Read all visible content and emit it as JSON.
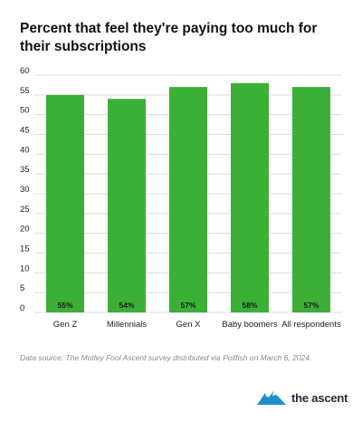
{
  "chart_data": {
    "type": "bar",
    "title": "Percent that feel they're paying too much for their subscriptions",
    "categories": [
      "Gen Z",
      "Millennials",
      "Gen X",
      "Baby boomers",
      "All respondents"
    ],
    "values": [
      55,
      54,
      57,
      58,
      57
    ],
    "value_labels": [
      "55%",
      "54%",
      "57%",
      "58%",
      "57%"
    ],
    "ylim": [
      0,
      60
    ],
    "yticks": [
      0,
      5,
      10,
      15,
      20,
      25,
      30,
      35,
      40,
      45,
      50,
      55,
      60
    ],
    "grid": true,
    "bar_color": "#3caf37",
    "grid_color": "#dcdcdc"
  },
  "source_note": "Data source: The Motley Fool Ascent survey distributed via Pollfish on March 6, 2024.",
  "logo": {
    "text": "the ascent",
    "icon": "ascent-mountain-icon",
    "color": "#1f8fc9"
  }
}
